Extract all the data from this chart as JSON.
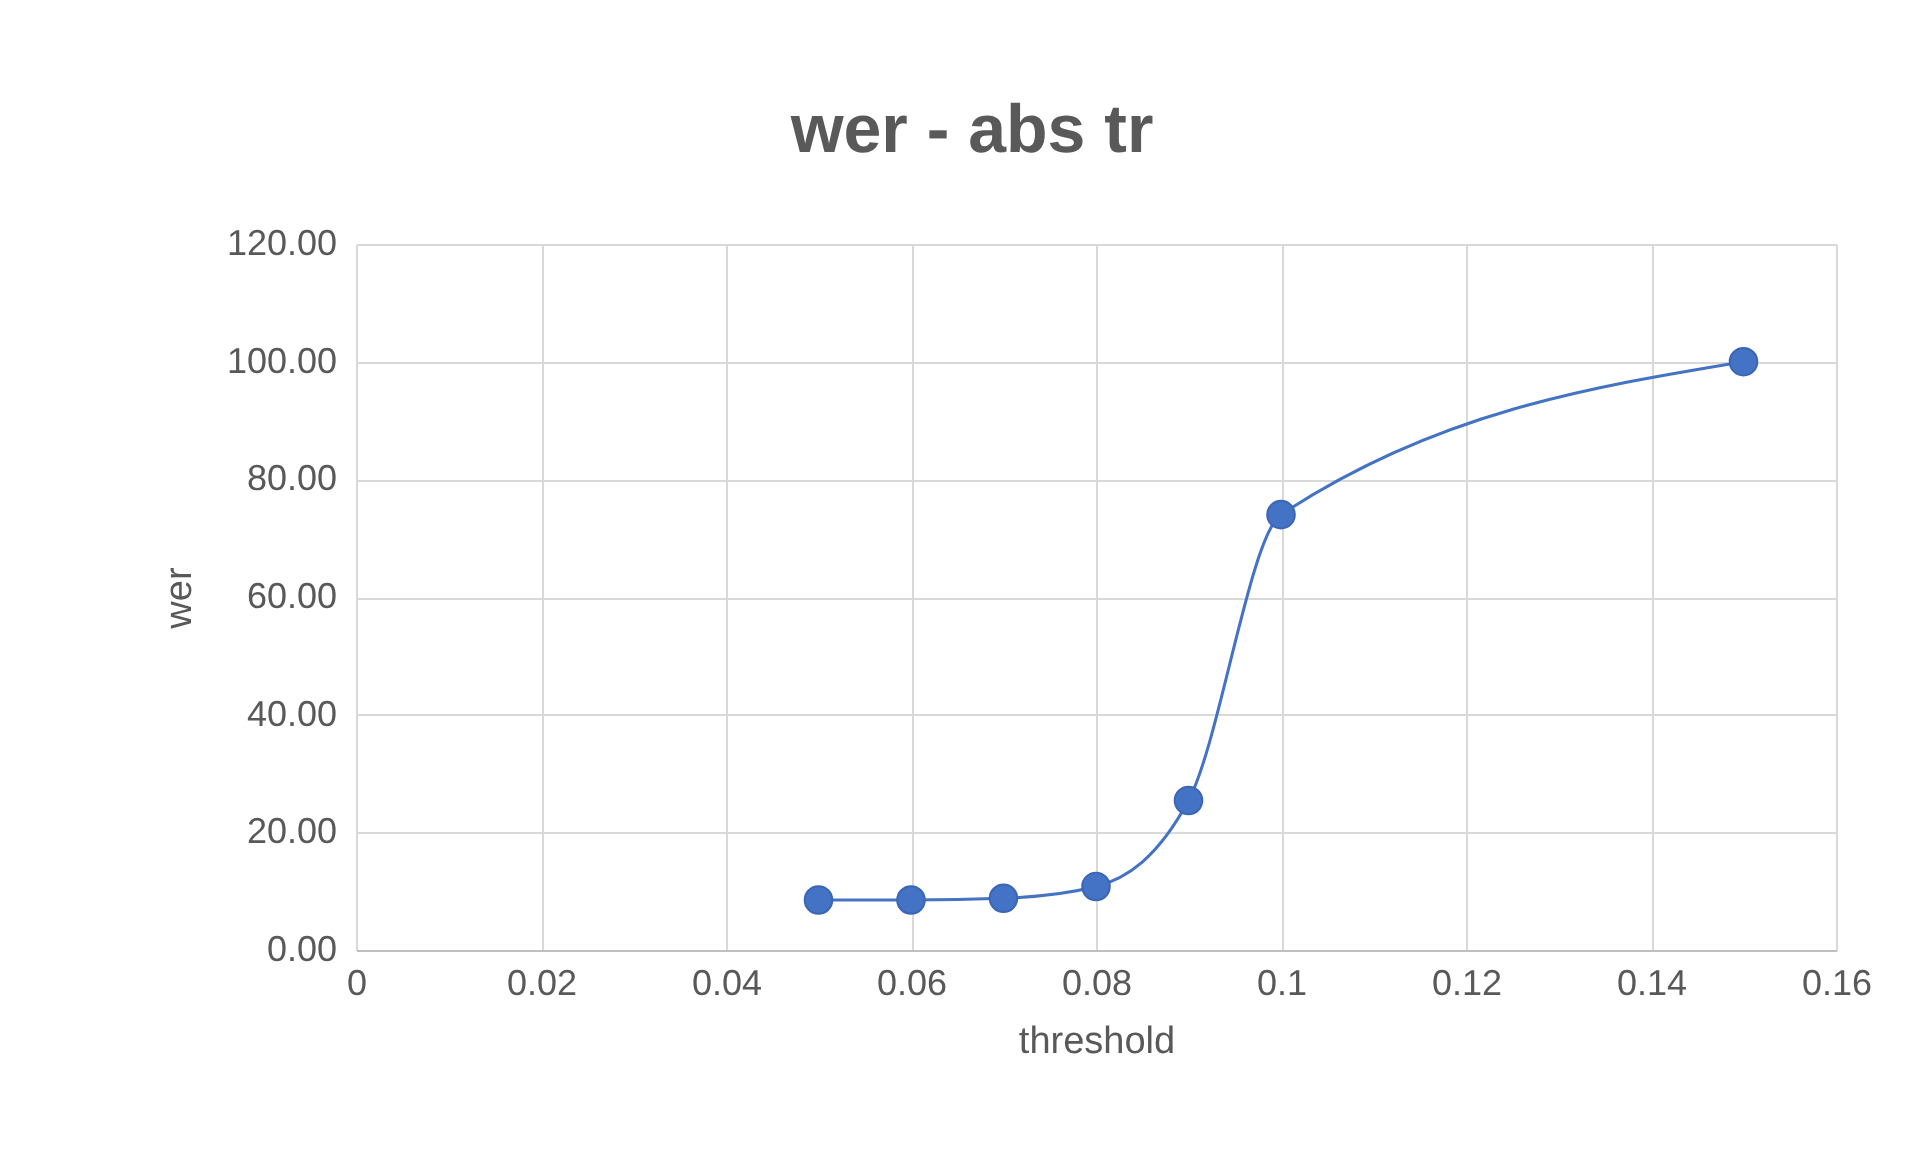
{
  "chart_data": {
    "type": "line",
    "title": "wer - abs tr",
    "xlabel": "threshold",
    "ylabel": "wer",
    "x": [
      0.05,
      0.06,
      0.07,
      0.08,
      0.09,
      0.1,
      0.15
    ],
    "series": [
      {
        "color": "#4472c4",
        "values": [
          8.5,
          8.5,
          8.8,
          10.8,
          25.4,
          74.0,
          100.0
        ]
      }
    ],
    "xlim": [
      0,
      0.16
    ],
    "xticks": [
      0,
      0.02,
      0.04,
      0.06,
      0.08,
      0.1,
      0.12,
      0.14,
      0.16
    ],
    "ylim": [
      0,
      120
    ],
    "yticks": [
      {
        "value": 0,
        "label": "0.00"
      },
      {
        "value": 20,
        "label": "20.00"
      },
      {
        "value": 40,
        "label": "40.00"
      },
      {
        "value": 60,
        "label": "60.00"
      },
      {
        "value": 80,
        "label": "80.00"
      },
      {
        "value": 100,
        "label": "100.00"
      },
      {
        "value": 120,
        "label": "120.00"
      }
    ],
    "grid": true,
    "marker": "circle",
    "line_style": "solid"
  }
}
